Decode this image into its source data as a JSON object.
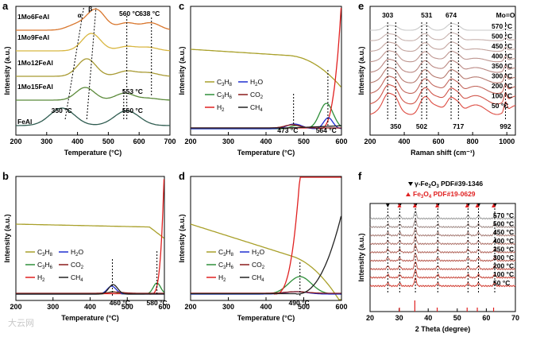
{
  "chart_data": [
    {
      "panel": "a",
      "type": "line",
      "xlabel": "Temperature (°C)",
      "ylabel": "Intensity (a.u.)",
      "xlim": [
        200,
        700
      ],
      "xticks": [
        200,
        300,
        400,
        500,
        600,
        700
      ],
      "series_names": [
        "1Mo6FeAl",
        "1Mo9FeAl",
        "1Mo12FeAl",
        "1Mo15FeAl",
        "FeAl"
      ],
      "series_colors": [
        "#d9772e",
        "#d8b640",
        "#a89a32",
        "#5b8a3a",
        "#2f5c50"
      ],
      "peaks": [
        {
          "series": "1Mo6FeAl",
          "centers": [
            395,
            460,
            560,
            638
          ],
          "heights": [
            0.25,
            1.0,
            0.35,
            0.35
          ]
        },
        {
          "series": "1Mo9FeAl",
          "centers": [
            445,
            560,
            630
          ],
          "heights": [
            1.0,
            0.25,
            0.2
          ]
        },
        {
          "series": "1Mo12FeAl",
          "centers": [
            430,
            560,
            630
          ],
          "heights": [
            1.0,
            0.3,
            0.2
          ]
        },
        {
          "series": "1Mo15FeAl",
          "centers": [
            425,
            553,
            630
          ],
          "heights": [
            1.0,
            0.55,
            0.15
          ]
        },
        {
          "series": "FeAl",
          "centers": [
            350,
            560
          ],
          "heights": [
            1.0,
            0.85
          ]
        }
      ],
      "annotations": [
        "α",
        "β",
        "560 °C",
        "638 °C",
        "553 °C",
        "350 °C",
        "560 °C"
      ]
    },
    {
      "panel": "b",
      "type": "line",
      "xlabel": "Temperature (°C)",
      "ylabel": "Intensity (a.u.)",
      "xlim": [
        200,
        600
      ],
      "xticks": [
        200,
        300,
        400,
        500,
        600
      ],
      "series": [
        {
          "name": "C3H8",
          "color": "#a9a02a"
        },
        {
          "name": "C3H6",
          "color": "#2f8f3a"
        },
        {
          "name": "H2",
          "color": "#e02020"
        },
        {
          "name": "H2O",
          "color": "#1f2fd0"
        },
        {
          "name": "CO2",
          "color": "#8b1a1a"
        },
        {
          "name": "CH4",
          "color": "#222222"
        }
      ],
      "annotations": [
        "460 °C",
        "580 °C"
      ]
    },
    {
      "panel": "c",
      "type": "line",
      "xlabel": "Temperature (°C)",
      "ylabel": "Intensity (a.u.)",
      "xlim": [
        200,
        600
      ],
      "xticks": [
        200,
        300,
        400,
        500,
        600
      ],
      "series": [
        "C3H8",
        "C3H6",
        "H2",
        "H2O",
        "CO2",
        "CH4"
      ],
      "annotations": [
        "473 °C",
        "564 °C"
      ]
    },
    {
      "panel": "d",
      "type": "line",
      "xlabel": "Temperature (°C)",
      "ylabel": "Intensity (a.u.)",
      "xlim": [
        200,
        600
      ],
      "xticks": [
        200,
        300,
        400,
        500,
        600
      ],
      "series": [
        "C3H8",
        "C3H6",
        "H2",
        "H2O",
        "CO2",
        "CH4"
      ],
      "annotations": [
        "490 °C"
      ]
    },
    {
      "panel": "e",
      "type": "line",
      "xlabel": "Raman shift (cm⁻¹)",
      "ylabel": "Intensity (a.u.)",
      "xlim": [
        200,
        1050
      ],
      "xticks": [
        200,
        400,
        600,
        800,
        1000
      ],
      "series_names": [
        "570 °C",
        "500 °C",
        "450 °C",
        "400 °C",
        "350 °C",
        "300 °C",
        "200 °C",
        "100 °C",
        "50 °C"
      ],
      "peak_positions": [
        303,
        350,
        502,
        531,
        674,
        717,
        992
      ],
      "top_labels": [
        "303",
        "531",
        "674",
        "Mo=O"
      ],
      "bottom_labels": [
        "350",
        "502",
        "717",
        "992"
      ]
    },
    {
      "panel": "f",
      "type": "line",
      "xlabel": "2 Theta (degree)",
      "ylabel": "Intensity (a.u.)",
      "xlim": [
        20,
        70
      ],
      "xticks": [
        20,
        30,
        40,
        50,
        60,
        70
      ],
      "series_names": [
        "570 °C",
        "500 °C",
        "450 °C",
        "400 °C",
        "350 °C",
        "300 °C",
        "200 °C",
        "100 °C",
        "50 °C"
      ],
      "legend": [
        "γ-Fe2O3 PDF#39-1346",
        "Fe3O4 PDF#19-0629"
      ],
      "legend_colors": [
        "#000000",
        "#e02020"
      ],
      "peak_positions": [
        26.1,
        30.2,
        35.6,
        43.3,
        53.7,
        57.3,
        62.9
      ],
      "ref_red": [
        30.1,
        35.4,
        43.1,
        53.4,
        56.9,
        62.5
      ]
    }
  ],
  "watermark": "大云网"
}
